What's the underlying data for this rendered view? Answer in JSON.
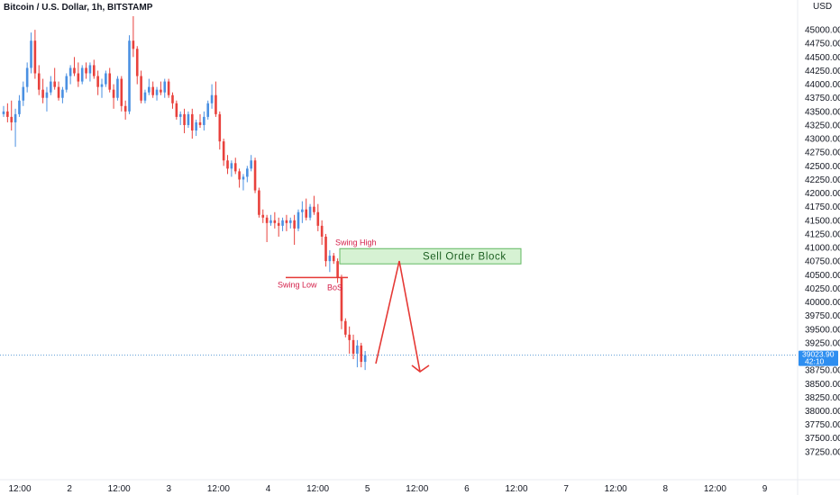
{
  "header": {
    "symbol": "Bitcoin / U.S. Dollar, 1h, BITSTAMP"
  },
  "axis": {
    "currency": "USD"
  },
  "colors": {
    "up": "#4a90e2",
    "down": "#e8413c",
    "annotation": "#e53935",
    "order_block_fill": "#d6f2d3",
    "order_block_border": "#62b862",
    "price_tag": "#2d8ef0"
  },
  "chart_data": {
    "type": "candlestick",
    "title": "Bitcoin / U.S. Dollar, 1h, BITSTAMP",
    "ylabel": "USD",
    "ylim": [
      36950,
      45250
    ],
    "y_ticks": [
      45000,
      44750,
      44500,
      44250,
      44000,
      43750,
      43500,
      43250,
      43000,
      42750,
      42500,
      42250,
      42000,
      41750,
      41500,
      41250,
      41000,
      40750,
      40500,
      40250,
      40000,
      39750,
      39500,
      39250,
      38750,
      38500,
      38250,
      38000,
      37750,
      37500,
      37250
    ],
    "x_ticks": [
      "12:00",
      "2",
      "12:00",
      "3",
      "12:00",
      "4",
      "12:00",
      "5",
      "12:00",
      "6",
      "12:00",
      "7",
      "12:00",
      "8",
      "12:00",
      "9"
    ],
    "last_price": "39023.90",
    "countdown": "42:10",
    "candles": [
      [
        43450,
        43600,
        43400,
        43500
      ],
      [
        43500,
        43650,
        43300,
        43400
      ],
      [
        43400,
        43700,
        43150,
        43300
      ],
      [
        43300,
        43550,
        42850,
        43450
      ],
      [
        43450,
        43800,
        43400,
        43700
      ],
      [
        43700,
        44050,
        43600,
        43950
      ],
      [
        43950,
        44400,
        43850,
        44300
      ],
      [
        44300,
        44950,
        44200,
        44800
      ],
      [
        44800,
        45000,
        44100,
        44200
      ],
      [
        44200,
        44350,
        43800,
        43900
      ],
      [
        43900,
        44100,
        43650,
        43750
      ],
      [
        43750,
        43950,
        43500,
        43850
      ],
      [
        43850,
        44150,
        43800,
        44050
      ],
      [
        44050,
        44300,
        43900,
        43950
      ],
      [
        43950,
        44050,
        43700,
        43750
      ],
      [
        43750,
        43950,
        43650,
        43900
      ],
      [
        43900,
        44200,
        43850,
        44150
      ],
      [
        44150,
        44350,
        44000,
        44300
      ],
      [
        44300,
        44500,
        44150,
        44200
      ],
      [
        44200,
        44400,
        43950,
        44050
      ],
      [
        44050,
        44350,
        44000,
        44300
      ],
      [
        44300,
        44400,
        44100,
        44200
      ],
      [
        44200,
        44400,
        44050,
        44350
      ],
      [
        44350,
        44450,
        44100,
        44150
      ],
      [
        44150,
        44250,
        43800,
        43950
      ],
      [
        43950,
        44100,
        43750,
        44000
      ],
      [
        44000,
        44250,
        43950,
        44200
      ],
      [
        44200,
        44300,
        43850,
        43900
      ],
      [
        43900,
        44000,
        43550,
        43750
      ],
      [
        43750,
        44150,
        43700,
        44100
      ],
      [
        44100,
        44150,
        43500,
        43600
      ],
      [
        43600,
        43700,
        43350,
        43500
      ],
      [
        43500,
        44900,
        43450,
        44800
      ],
      [
        44800,
        45250,
        44500,
        44650
      ],
      [
        44650,
        44700,
        44000,
        44150
      ],
      [
        44150,
        44250,
        43650,
        43700
      ],
      [
        43700,
        43900,
        43650,
        43850
      ],
      [
        43850,
        44100,
        43800,
        43950
      ],
      [
        43950,
        44050,
        43750,
        43800
      ],
      [
        43800,
        43950,
        43700,
        43900
      ],
      [
        43900,
        44050,
        43800,
        43850
      ],
      [
        43850,
        44100,
        43750,
        44050
      ],
      [
        44050,
        44100,
        43750,
        43800
      ],
      [
        43800,
        43850,
        43550,
        43650
      ],
      [
        43650,
        43700,
        43350,
        43400
      ],
      [
        43400,
        43500,
        43250,
        43450
      ],
      [
        43450,
        43550,
        43100,
        43250
      ],
      [
        43250,
        43500,
        43200,
        43450
      ],
      [
        43450,
        43550,
        43000,
        43150
      ],
      [
        43150,
        43350,
        43050,
        43300
      ],
      [
        43300,
        43450,
        43200,
        43250
      ],
      [
        43250,
        43500,
        43150,
        43400
      ],
      [
        43400,
        43700,
        43350,
        43650
      ],
      [
        43650,
        44000,
        43550,
        43800
      ],
      [
        43800,
        44050,
        43400,
        43450
      ],
      [
        43450,
        43500,
        42800,
        42950
      ],
      [
        42950,
        43000,
        42500,
        42600
      ],
      [
        42600,
        42700,
        42350,
        42450
      ],
      [
        42450,
        42600,
        42300,
        42550
      ],
      [
        42550,
        42650,
        42350,
        42400
      ],
      [
        42400,
        42450,
        42100,
        42250
      ],
      [
        42250,
        42350,
        42050,
        42300
      ],
      [
        42300,
        42500,
        42200,
        42450
      ],
      [
        42450,
        42700,
        42400,
        42600
      ],
      [
        42600,
        42650,
        42000,
        42050
      ],
      [
        42050,
        42100,
        41550,
        41600
      ],
      [
        41600,
        41700,
        41450,
        41550
      ],
      [
        41550,
        41600,
        41100,
        41450
      ],
      [
        41450,
        41600,
        41400,
        41500
      ],
      [
        41500,
        41650,
        41350,
        41450
      ],
      [
        41450,
        41550,
        41200,
        41400
      ],
      [
        41400,
        41550,
        41300,
        41500
      ],
      [
        41500,
        41600,
        41300,
        41450
      ],
      [
        41450,
        41550,
        41350,
        41500
      ],
      [
        41500,
        41600,
        41050,
        41350
      ],
      [
        41350,
        41700,
        41300,
        41650
      ],
      [
        41650,
        41850,
        41450,
        41700
      ],
      [
        41700,
        41900,
        41500,
        41550
      ],
      [
        41550,
        41800,
        41500,
        41750
      ],
      [
        41750,
        41950,
        41600,
        41650
      ],
      [
        41650,
        41800,
        41300,
        41400
      ],
      [
        41400,
        41500,
        41050,
        41200
      ],
      [
        41200,
        41250,
        40650,
        40750
      ],
      [
        40750,
        40950,
        40550,
        40850
      ],
      [
        40850,
        40900,
        40700,
        40750
      ],
      [
        40750,
        40800,
        40350,
        40450
      ],
      [
        40450,
        40500,
        39500,
        39650
      ],
      [
        39650,
        39700,
        39350,
        39400
      ],
      [
        39400,
        39550,
        39050,
        39300
      ],
      [
        39300,
        39400,
        38950,
        39050
      ],
      [
        39050,
        39300,
        38800,
        39200
      ],
      [
        39200,
        39250,
        38800,
        38900
      ],
      [
        38900,
        39100,
        38750,
        39024
      ]
    ],
    "annotations": {
      "swing_high": "Swing High",
      "swing_low": "Swing Low",
      "bos": "BoS",
      "order_block": "Sell Order Block",
      "order_block_range": [
        40700,
        40980
      ],
      "bos_level": 40450
    }
  }
}
